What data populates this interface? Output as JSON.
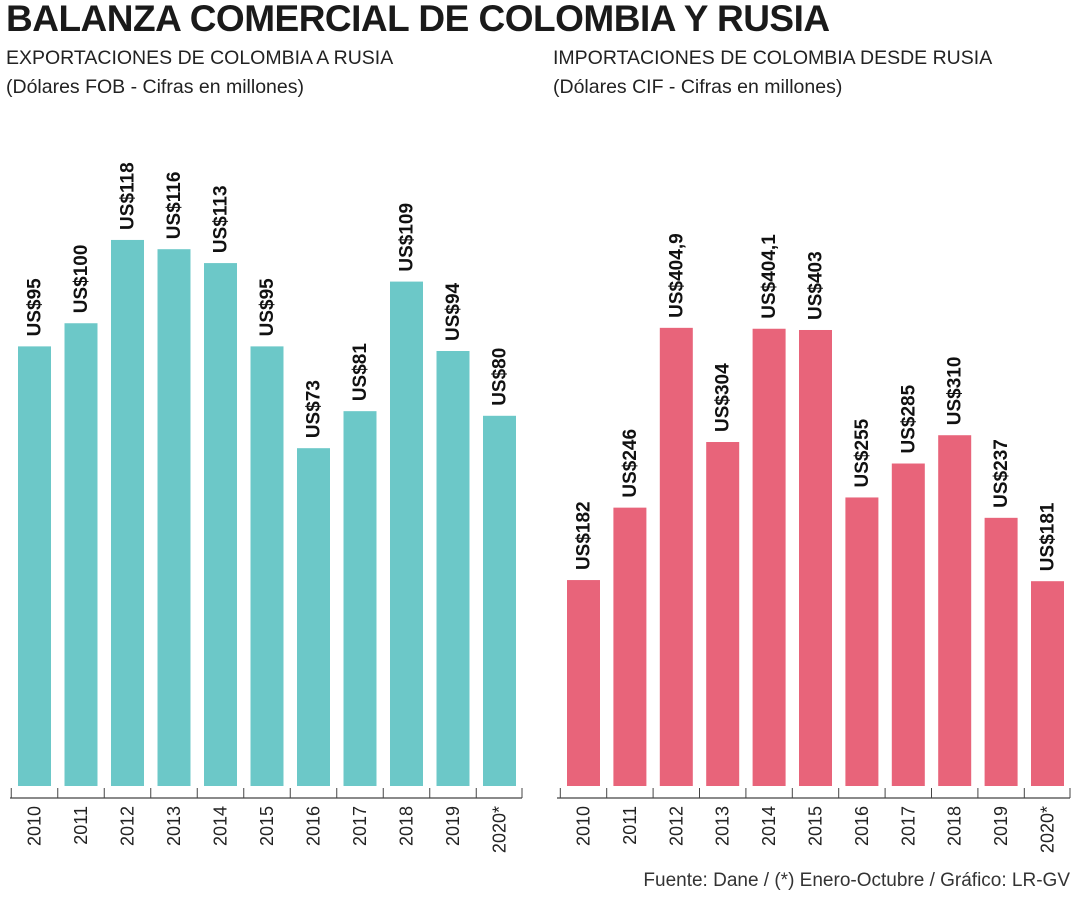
{
  "title": "BALANZA COMERCIAL DE COLOMBIA Y RUSIA",
  "source": "Fuente: Dane / (*) Enero-Octubre / Gráfico: LR-GV",
  "chart_data": [
    {
      "type": "bar",
      "title": "EXPORTACIONES DE COLOMBIA A RUSIA",
      "subtitle": "(Dólares FOB - Cifras en millones)",
      "categories": [
        "2010",
        "2011",
        "2012",
        "2013",
        "2014",
        "2015",
        "2016",
        "2017",
        "2018",
        "2019",
        "2020*"
      ],
      "values": [
        95,
        100,
        118,
        116,
        113,
        95,
        73,
        81,
        109,
        94,
        80
      ],
      "value_labels": [
        "US$95",
        "US$100",
        "US$118",
        "US$116",
        "US$113",
        "US$95",
        "US$73",
        "US$81",
        "US$109",
        "US$94",
        "US$80"
      ],
      "ylim": [
        0,
        145
      ],
      "bar_color": "#6cc8c8",
      "grid": false,
      "legend": "none"
    },
    {
      "type": "bar",
      "title": "IMPORTACIONES DE COLOMBIA DESDE RUSIA",
      "subtitle": "(Dólares CIF - Cifras en millones)",
      "categories": [
        "2010",
        "2011",
        "2012",
        "2013",
        "2014",
        "2015",
        "2016",
        "2017",
        "2018",
        "2019",
        "2020*"
      ],
      "values": [
        182,
        246,
        404.9,
        304,
        404.1,
        403,
        255,
        285,
        310,
        237,
        181
      ],
      "value_labels": [
        "US$182",
        "US$246",
        "US$404,9",
        "US$304",
        "US$404,1",
        "US$403",
        "US$255",
        "US$285",
        "US$310",
        "US$237",
        "US$181"
      ],
      "ylim": [
        0,
        593
      ],
      "bar_color": "#e8647a",
      "grid": false,
      "legend": "none"
    }
  ]
}
